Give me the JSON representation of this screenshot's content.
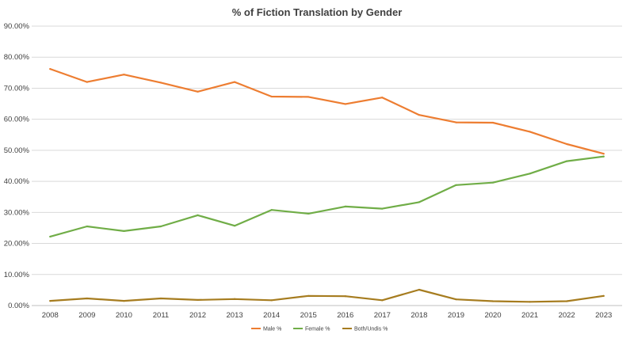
{
  "chart_data": {
    "type": "line",
    "title": "% of Fiction Translation by Gender",
    "xlabel": "",
    "ylabel": "",
    "x": [
      "2008",
      "2009",
      "2010",
      "2011",
      "2012",
      "2013",
      "2014",
      "2015",
      "2016",
      "2017",
      "2018",
      "2019",
      "2020",
      "2021",
      "2022",
      "2023"
    ],
    "ylim": [
      0,
      90
    ],
    "yticks": [
      "0.00%",
      "10.00%",
      "20.00%",
      "30.00%",
      "40.00%",
      "50.00%",
      "60.00%",
      "70.00%",
      "80.00%",
      "90.00%"
    ],
    "grid": true,
    "legend_position": "bottom",
    "series": [
      {
        "name": "Male %",
        "color": "#ED7D31",
        "values": [
          76.2,
          72.0,
          74.4,
          71.8,
          68.9,
          72.0,
          67.3,
          67.2,
          64.9,
          67.0,
          61.4,
          59.0,
          58.9,
          56.0,
          52.0,
          48.9
        ]
      },
      {
        "name": "Female %",
        "color": "#70AD47",
        "values": [
          22.2,
          25.5,
          24.0,
          25.5,
          29.1,
          25.7,
          30.8,
          29.6,
          31.9,
          31.2,
          33.3,
          38.8,
          39.6,
          42.5,
          46.5,
          48.0
        ]
      },
      {
        "name": "Both/Undis %",
        "color": "#A67C1F",
        "values": [
          1.5,
          2.3,
          1.5,
          2.3,
          1.8,
          2.1,
          1.7,
          3.1,
          3.0,
          1.7,
          5.1,
          2.0,
          1.4,
          1.2,
          1.4,
          3.1
        ]
      }
    ]
  }
}
